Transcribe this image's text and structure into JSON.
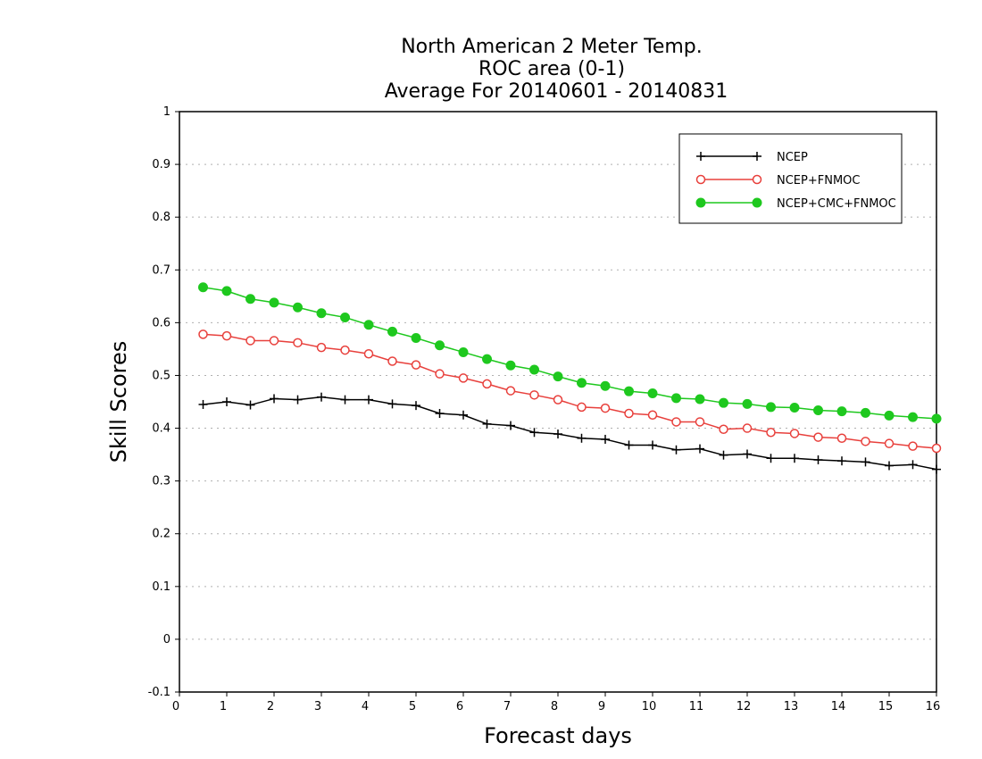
{
  "chart_data": {
    "type": "line",
    "title_lines": [
      "North American 2 Meter Temp.",
      "ROC area (0-1)",
      "Average For 20140601 - 20140831"
    ],
    "xlabel": "Forecast days",
    "ylabel": "Skill Scores",
    "xlim": [
      0,
      16
    ],
    "ylim": [
      -0.1,
      1
    ],
    "xticks": [
      0,
      1,
      2,
      3,
      4,
      5,
      6,
      7,
      8,
      9,
      10,
      11,
      12,
      13,
      14,
      15,
      16
    ],
    "yticks": [
      -0.1,
      0,
      0.1,
      0.2,
      0.3,
      0.4,
      0.5,
      0.6,
      0.7,
      0.8,
      0.9,
      1
    ],
    "ytick_labels": [
      "-0.1",
      "0",
      "0.1",
      "0.2",
      "0.3",
      "0.4",
      "0.5",
      "0.6",
      "0.7",
      "0.8",
      "0.9",
      "1"
    ],
    "grid": "horizontal dotted",
    "legend_position": "top-right",
    "x": [
      0.5,
      1,
      1.5,
      2,
      2.5,
      3,
      3.5,
      4,
      4.5,
      5,
      5.5,
      6,
      6.5,
      7,
      7.5,
      8,
      8.5,
      9,
      9.5,
      10,
      10.5,
      11,
      11.5,
      12,
      12.5,
      13,
      13.5,
      14,
      14.5,
      15,
      15.5,
      16
    ],
    "series": [
      {
        "name": "NCEP",
        "color": "#000000",
        "marker": "plus",
        "values": [
          0.445,
          0.45,
          0.444,
          0.456,
          0.454,
          0.459,
          0.454,
          0.454,
          0.446,
          0.443,
          0.428,
          0.425,
          0.408,
          0.405,
          0.392,
          0.389,
          0.381,
          0.379,
          0.368,
          0.368,
          0.359,
          0.361,
          0.349,
          0.351,
          0.343,
          0.343,
          0.34,
          0.338,
          0.336,
          0.329,
          0.331,
          0.322
        ]
      },
      {
        "name": "NCEP+FNMOC",
        "color": "#e8403c",
        "marker": "open-circle",
        "values": [
          0.578,
          0.575,
          0.566,
          0.566,
          0.562,
          0.553,
          0.548,
          0.541,
          0.527,
          0.52,
          0.503,
          0.495,
          0.484,
          0.471,
          0.463,
          0.454,
          0.44,
          0.438,
          0.428,
          0.425,
          0.412,
          0.412,
          0.398,
          0.4,
          0.392,
          0.39,
          0.383,
          0.381,
          0.375,
          0.371,
          0.366,
          0.362
        ]
      },
      {
        "name": "NCEP+CMC+FNMOC",
        "color": "#1ec81e",
        "marker": "filled-circle",
        "values": [
          0.667,
          0.66,
          0.645,
          0.638,
          0.629,
          0.618,
          0.61,
          0.596,
          0.583,
          0.571,
          0.557,
          0.544,
          0.531,
          0.519,
          0.511,
          0.498,
          0.486,
          0.48,
          0.47,
          0.466,
          0.457,
          0.455,
          0.448,
          0.446,
          0.44,
          0.439,
          0.434,
          0.432,
          0.429,
          0.424,
          0.421,
          0.418
        ]
      }
    ]
  }
}
